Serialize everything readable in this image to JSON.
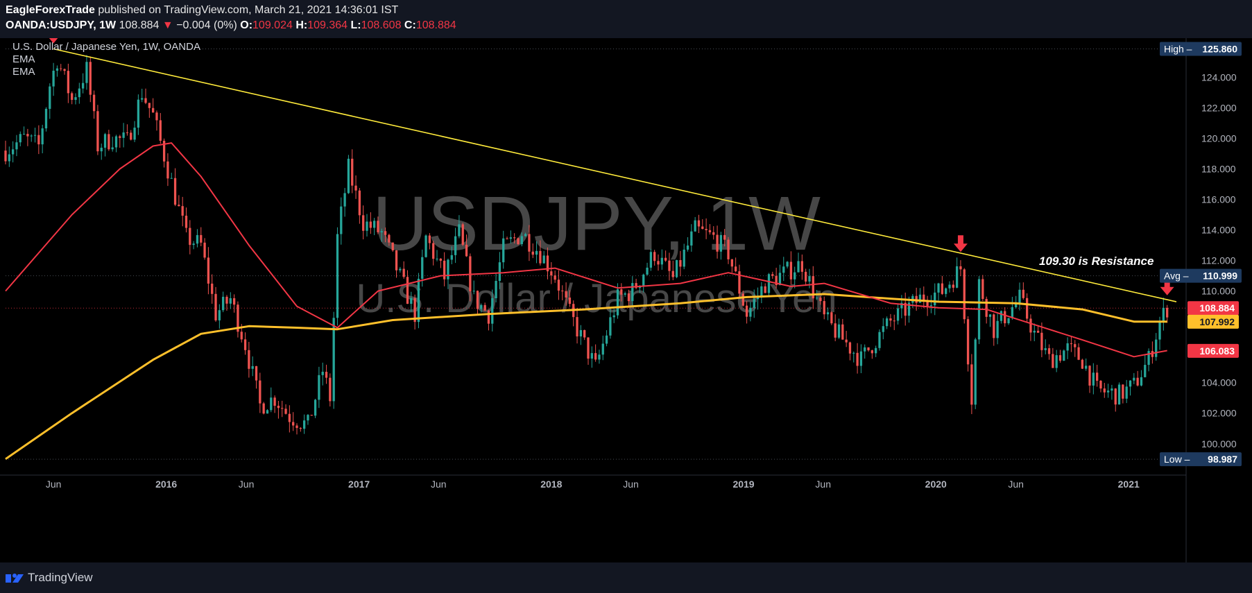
{
  "header": {
    "author": "EagleForexTrade",
    "published_text": "published on TradingView.com, March 21, 2021 14:36:01 IST",
    "symbol": "OANDA:USDJPY, 1W",
    "last": "108.884",
    "change": "−0.004 (0%)",
    "o_label": "O:",
    "o_val": "109.024",
    "h_label": "H:",
    "h_val": "109.364",
    "l_label": "L:",
    "l_val": "108.608",
    "c_label": "C:",
    "c_val": "108.884"
  },
  "legend": {
    "title": "U.S. Dollar / Japanese Yen, 1W, OANDA",
    "ema1": "EMA",
    "ema2": "EMA"
  },
  "watermark": {
    "line1": "USDJPY, 1W",
    "line2": "U.S. Dollar / Japanese Yen"
  },
  "annotation": "109.30 is Resistance",
  "footer": {
    "brand": "TradingView"
  },
  "colors": {
    "up": "#26a69a",
    "down": "#ef5350",
    "ema_fast": "#f23645",
    "ema_slow": "#ffc02b",
    "trendline": "#ffeb3b",
    "arrow": "#f23645",
    "axis_text": "#b2b5be",
    "high_low_badge": "#1e3a5f",
    "last_badge": "#f23645",
    "ema_slow_badge": "#ffc02b"
  },
  "chart_data": {
    "type": "candlestick",
    "y_axis": {
      "ticks": [
        "100.000",
        "102.000",
        "104.000",
        "106.000",
        "108.000",
        "110.000",
        "112.000",
        "114.000",
        "116.000",
        "118.000",
        "120.000",
        "122.000",
        "124.000"
      ],
      "ylim": [
        98.4,
        126.2
      ]
    },
    "x_axis": {
      "ticks": [
        "Jun",
        "2016",
        "Jun",
        "2017",
        "Jun",
        "2018",
        "Jun",
        "2019",
        "Jun",
        "2020",
        "Jun",
        "2021"
      ],
      "tick_dates": [
        "2015-06-01",
        "2016-01-01",
        "2016-06-01",
        "2017-01-01",
        "2017-06-01",
        "2018-01-01",
        "2018-06-01",
        "2019-01-01",
        "2019-06-01",
        "2020-01-01",
        "2020-06-01",
        "2021-01-01"
      ],
      "range": [
        "2015-03-02",
        "2021-04-20"
      ]
    },
    "price_labels": [
      {
        "label": "High",
        "value": "125.860",
        "kind": "high"
      },
      {
        "label": "Avg",
        "value": "110.999",
        "kind": "avg"
      },
      {
        "label": "",
        "value": "108.884",
        "kind": "last"
      },
      {
        "label": "",
        "value": "107.992",
        "kind": "ema_slow"
      },
      {
        "label": "",
        "value": "106.083",
        "kind": "ema_fast"
      },
      {
        "label": "Low",
        "value": "98.987",
        "kind": "low"
      }
    ],
    "trendline": {
      "from": {
        "date": "2015-06-01",
        "price": 125.86
      },
      "to": {
        "date": "2021-03-22",
        "price": 109.3
      }
    },
    "arrows": [
      {
        "date": "2015-06-01",
        "price": 125.86
      },
      {
        "date": "2020-02-17",
        "price": 112.2
      },
      {
        "date": "2021-03-15",
        "price": 109.36
      }
    ],
    "price_path": [
      [
        "2015-03-02",
        119.2
      ],
      [
        "2015-04-06",
        120.0
      ],
      [
        "2015-05-04",
        119.5
      ],
      [
        "2015-05-25",
        123.5
      ],
      [
        "2015-06-08",
        125.2
      ],
      [
        "2015-07-06",
        122.5
      ],
      [
        "2015-08-03",
        124.5
      ],
      [
        "2015-08-24",
        119.5
      ],
      [
        "2015-09-21",
        120.0
      ],
      [
        "2015-10-19",
        119.8
      ],
      [
        "2015-11-16",
        123.0
      ],
      [
        "2015-12-07",
        121.5
      ],
      [
        "2016-01-04",
        118.0
      ],
      [
        "2016-02-08",
        113.5
      ],
      [
        "2016-03-07",
        113.0
      ],
      [
        "2016-04-04",
        108.5
      ],
      [
        "2016-05-02",
        109.5
      ],
      [
        "2016-05-30",
        106.5
      ],
      [
        "2016-06-27",
        102.5
      ],
      [
        "2016-07-25",
        103.0
      ],
      [
        "2016-08-22",
        101.8
      ],
      [
        "2016-09-26",
        101.2
      ],
      [
        "2016-10-24",
        104.8
      ],
      [
        "2016-11-07",
        103.0
      ],
      [
        "2016-11-21",
        113.5
      ],
      [
        "2016-12-12",
        118.0
      ],
      [
        "2017-01-09",
        114.5
      ],
      [
        "2017-02-13",
        113.8
      ],
      [
        "2017-03-13",
        111.5
      ],
      [
        "2017-04-17",
        108.5
      ],
      [
        "2017-05-08",
        113.5
      ],
      [
        "2017-06-12",
        110.9
      ],
      [
        "2017-07-10",
        113.8
      ],
      [
        "2017-08-07",
        109.5
      ],
      [
        "2017-09-04",
        108.5
      ],
      [
        "2017-10-02",
        112.8
      ],
      [
        "2017-11-06",
        113.8
      ],
      [
        "2017-12-11",
        112.5
      ],
      [
        "2018-01-08",
        111.0
      ],
      [
        "2018-02-05",
        108.5
      ],
      [
        "2018-03-05",
        106.5
      ],
      [
        "2018-03-26",
        105.0
      ],
      [
        "2018-05-07",
        109.5
      ],
      [
        "2018-06-04",
        110.0
      ],
      [
        "2018-07-16",
        112.5
      ],
      [
        "2018-08-20",
        110.8
      ],
      [
        "2018-10-01",
        114.0
      ],
      [
        "2018-11-05",
        113.5
      ],
      [
        "2018-12-03",
        112.5
      ],
      [
        "2019-01-07",
        108.5
      ],
      [
        "2019-02-11",
        110.5
      ],
      [
        "2019-04-22",
        111.8
      ],
      [
        "2019-06-03",
        108.2
      ],
      [
        "2019-08-12",
        105.5
      ],
      [
        "2019-09-02",
        106.5
      ],
      [
        "2019-10-07",
        108.0
      ],
      [
        "2019-12-02",
        109.5
      ],
      [
        "2020-01-13",
        110.0
      ],
      [
        "2020-02-17",
        111.5
      ],
      [
        "2020-03-09",
        103.0
      ],
      [
        "2020-03-23",
        110.5
      ],
      [
        "2020-04-20",
        107.5
      ],
      [
        "2020-06-08",
        109.5
      ],
      [
        "2020-07-06",
        107.2
      ],
      [
        "2020-08-03",
        105.5
      ],
      [
        "2020-09-07",
        106.2
      ],
      [
        "2020-10-05",
        105.5
      ],
      [
        "2020-11-02",
        103.5
      ],
      [
        "2020-12-14",
        103.2
      ],
      [
        "2021-01-11",
        103.8
      ],
      [
        "2021-02-08",
        105.5
      ],
      [
        "2021-03-01",
        108.0
      ],
      [
        "2021-03-15",
        108.9
      ]
    ],
    "ema_fast_path": [
      [
        "2015-03-02",
        110.0
      ],
      [
        "2015-07-06",
        115.0
      ],
      [
        "2015-10-05",
        118.0
      ],
      [
        "2015-12-07",
        119.5
      ],
      [
        "2016-01-11",
        119.7
      ],
      [
        "2016-03-07",
        117.5
      ],
      [
        "2016-06-06",
        113.0
      ],
      [
        "2016-09-05",
        109.0
      ],
      [
        "2016-11-21",
        107.6
      ],
      [
        "2017-02-06",
        110.0
      ],
      [
        "2017-06-05",
        111.0
      ],
      [
        "2017-10-02",
        111.2
      ],
      [
        "2018-01-08",
        111.5
      ],
      [
        "2018-05-07",
        110.2
      ],
      [
        "2018-09-03",
        110.5
      ],
      [
        "2018-12-03",
        111.2
      ],
      [
        "2019-04-01",
        110.3
      ],
      [
        "2019-06-03",
        110.5
      ],
      [
        "2019-10-07",
        109.2
      ],
      [
        "2020-01-06",
        108.9
      ],
      [
        "2020-04-06",
        108.8
      ],
      [
        "2020-07-06",
        107.8
      ],
      [
        "2020-10-05",
        106.8
      ],
      [
        "2021-01-11",
        105.7
      ],
      [
        "2021-03-15",
        106.1
      ]
    ],
    "ema_slow_path": [
      [
        "2015-03-02",
        99.0
      ],
      [
        "2015-07-06",
        102.0
      ],
      [
        "2015-12-07",
        105.5
      ],
      [
        "2016-03-07",
        107.2
      ],
      [
        "2016-06-06",
        107.7
      ],
      [
        "2016-09-05",
        107.6
      ],
      [
        "2016-11-21",
        107.5
      ],
      [
        "2017-03-06",
        108.1
      ],
      [
        "2017-09-04",
        108.5
      ],
      [
        "2018-03-05",
        108.8
      ],
      [
        "2018-09-03",
        109.2
      ],
      [
        "2019-01-07",
        109.6
      ],
      [
        "2019-06-03",
        109.8
      ],
      [
        "2019-10-07",
        109.5
      ],
      [
        "2020-01-06",
        109.3
      ],
      [
        "2020-06-01",
        109.2
      ],
      [
        "2020-10-05",
        108.8
      ],
      [
        "2021-01-11",
        108.0
      ],
      [
        "2021-03-15",
        108.0
      ]
    ]
  }
}
